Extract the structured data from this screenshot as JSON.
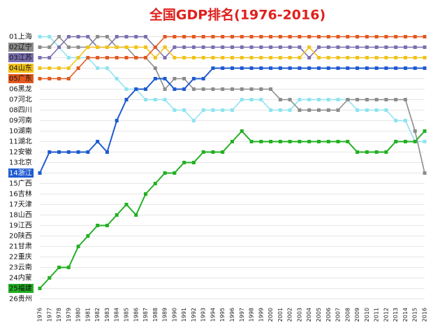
{
  "chart_data": {
    "type": "bump",
    "title": "全国GDP排名(1976-2016)",
    "categories": [
      "1976",
      "1977",
      "1978",
      "1979",
      "1980",
      "1981",
      "1982",
      "1983",
      "1984",
      "1985",
      "1986",
      "1987",
      "1988",
      "1989",
      "1990",
      "1991",
      "1992",
      "1993",
      "1994",
      "1995",
      "1996",
      "1997",
      "1998",
      "1999",
      "2000",
      "2001",
      "2002",
      "2003",
      "2004",
      "2005",
      "2006",
      "2007",
      "2008",
      "2009",
      "2010",
      "2011",
      "2012",
      "2013",
      "2014",
      "2015",
      "2016"
    ],
    "ylim": [
      26.5,
      0.5
    ],
    "yticks": [
      {
        "value": 1,
        "label": "01上海"
      },
      {
        "value": 2,
        "label": "02辽宁",
        "color": "#8c8c8c"
      },
      {
        "value": 3,
        "label": "03江苏",
        "color": "#7a6fb0"
      },
      {
        "value": 4,
        "label": "04山东",
        "color": "#f2c21b"
      },
      {
        "value": 5,
        "label": "05广东",
        "color": "#e2581f"
      },
      {
        "value": 6,
        "label": "06黑龙"
      },
      {
        "value": 7,
        "label": "07河北"
      },
      {
        "value": 8,
        "label": "08四川"
      },
      {
        "value": 9,
        "label": "09河南"
      },
      {
        "value": 10,
        "label": "10湖南"
      },
      {
        "value": 11,
        "label": "11湖北"
      },
      {
        "value": 12,
        "label": "12安徽"
      },
      {
        "value": 13,
        "label": "13北京"
      },
      {
        "value": 14,
        "label": "14浙江",
        "color": "#1f5bd0"
      },
      {
        "value": 15,
        "label": "15广西"
      },
      {
        "value": 16,
        "label": "16吉林"
      },
      {
        "value": 17,
        "label": "17天津"
      },
      {
        "value": 18,
        "label": "18山西"
      },
      {
        "value": 19,
        "label": "19江西"
      },
      {
        "value": 20,
        "label": "20陕西"
      },
      {
        "value": 21,
        "label": "21甘肃"
      },
      {
        "value": 22,
        "label": "22重庆"
      },
      {
        "value": 23,
        "label": "23云南"
      },
      {
        "value": 24,
        "label": "24内蒙"
      },
      {
        "value": 25,
        "label": "25福建",
        "color": "#22b022"
      },
      {
        "value": 26,
        "label": "26贵州"
      }
    ],
    "grid": true,
    "series": [
      {
        "color": "#8fe3f0",
        "values": [
          1,
          1,
          2,
          3,
          3,
          3,
          4,
          4,
          5,
          6,
          6,
          7,
          7,
          7,
          8,
          8,
          9,
          8,
          8,
          8,
          8,
          7,
          7,
          7,
          8,
          8,
          8,
          7,
          7,
          7,
          7,
          7,
          7,
          8,
          8,
          8,
          8,
          9,
          9,
          11,
          11
        ]
      },
      {
        "color": "#8c8c8c",
        "values": [
          2,
          2,
          1,
          2,
          2,
          2,
          1,
          1,
          2,
          2,
          3,
          3,
          4,
          6,
          5,
          5,
          6,
          6,
          6,
          6,
          6,
          6,
          6,
          6,
          6,
          7,
          7,
          8,
          8,
          8,
          8,
          8,
          7,
          7,
          7,
          7,
          7,
          7,
          7,
          10,
          14
        ]
      },
      {
        "color": "#7a6fb0",
        "values": [
          3,
          3,
          2,
          1,
          1,
          1,
          2,
          2,
          1,
          1,
          1,
          1,
          2,
          3,
          2,
          2,
          2,
          2,
          2,
          2,
          2,
          2,
          2,
          2,
          2,
          2,
          2,
          2,
          3,
          2,
          2,
          2,
          2,
          2,
          2,
          2,
          2,
          2,
          2,
          2,
          2
        ]
      },
      {
        "color": "#f2c21b",
        "values": [
          4,
          4,
          4,
          4,
          3,
          2,
          2,
          2,
          2,
          2,
          2,
          2,
          3,
          2,
          3,
          3,
          3,
          3,
          3,
          3,
          3,
          3,
          3,
          3,
          3,
          3,
          3,
          3,
          2,
          3,
          3,
          3,
          3,
          3,
          3,
          3,
          3,
          3,
          3,
          3,
          3
        ]
      },
      {
        "color": "#e2581f",
        "values": [
          5,
          5,
          5,
          5,
          4,
          3,
          3,
          3,
          3,
          3,
          3,
          3,
          2,
          1,
          1,
          1,
          1,
          1,
          1,
          1,
          1,
          1,
          1,
          1,
          1,
          1,
          1,
          1,
          1,
          1,
          1,
          1,
          1,
          1,
          1,
          1,
          1,
          1,
          1,
          1,
          1
        ]
      },
      {
        "color": "#1f5bd0",
        "values": [
          14,
          12,
          12,
          12,
          12,
          12,
          11,
          12,
          9,
          7,
          6,
          6,
          5,
          5,
          6,
          6,
          5,
          5,
          4,
          4,
          4,
          4,
          4,
          4,
          4,
          4,
          4,
          4,
          4,
          4,
          4,
          4,
          4,
          4,
          4,
          4,
          4,
          4,
          4,
          4,
          4
        ]
      },
      {
        "color": "#22b022",
        "values": [
          25,
          24,
          23,
          23,
          21,
          20,
          19,
          19,
          18,
          17,
          18,
          16,
          15,
          14,
          14,
          13,
          13,
          12,
          12,
          12,
          11,
          10,
          11,
          11,
          11,
          11,
          11,
          11,
          11,
          11,
          11,
          11,
          11,
          12,
          12,
          12,
          12,
          11,
          11,
          11,
          10
        ]
      }
    ]
  }
}
